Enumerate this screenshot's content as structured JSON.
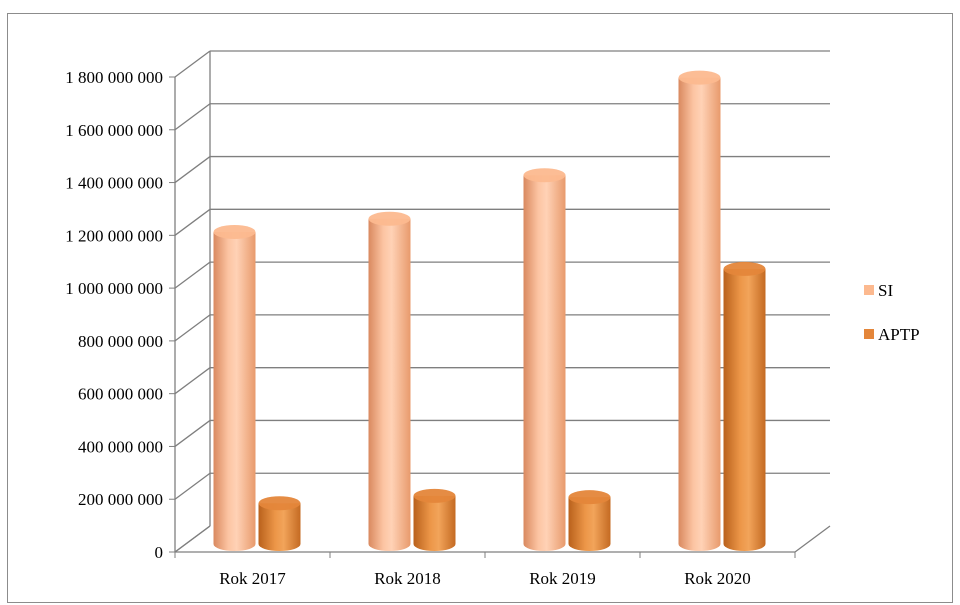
{
  "chart_data": {
    "type": "bar",
    "style": "3d-cylinder",
    "categories": [
      "Rok 2017",
      "Rok 2018",
      "Rok 2019",
      "Rok 2020"
    ],
    "series": [
      {
        "name": "SI",
        "values": [
          1190000000,
          1240000000,
          1405000000,
          1775000000
        ],
        "color": "#fcb98f"
      },
      {
        "name": "APTP",
        "values": [
          162000000,
          190000000,
          185000000,
          1050000000
        ],
        "color": "#e4863a"
      }
    ],
    "y_ticks": [
      "0",
      "200 000 000",
      "400 000 000",
      "600 000 000",
      "800 000 000",
      "1 000 000 000",
      "1 200 000 000",
      "1 400 000 000",
      "1 600 000 000",
      "1 800 000 000"
    ],
    "ylim": [
      0,
      1800000000
    ],
    "grid": true,
    "legend_position": "right"
  }
}
